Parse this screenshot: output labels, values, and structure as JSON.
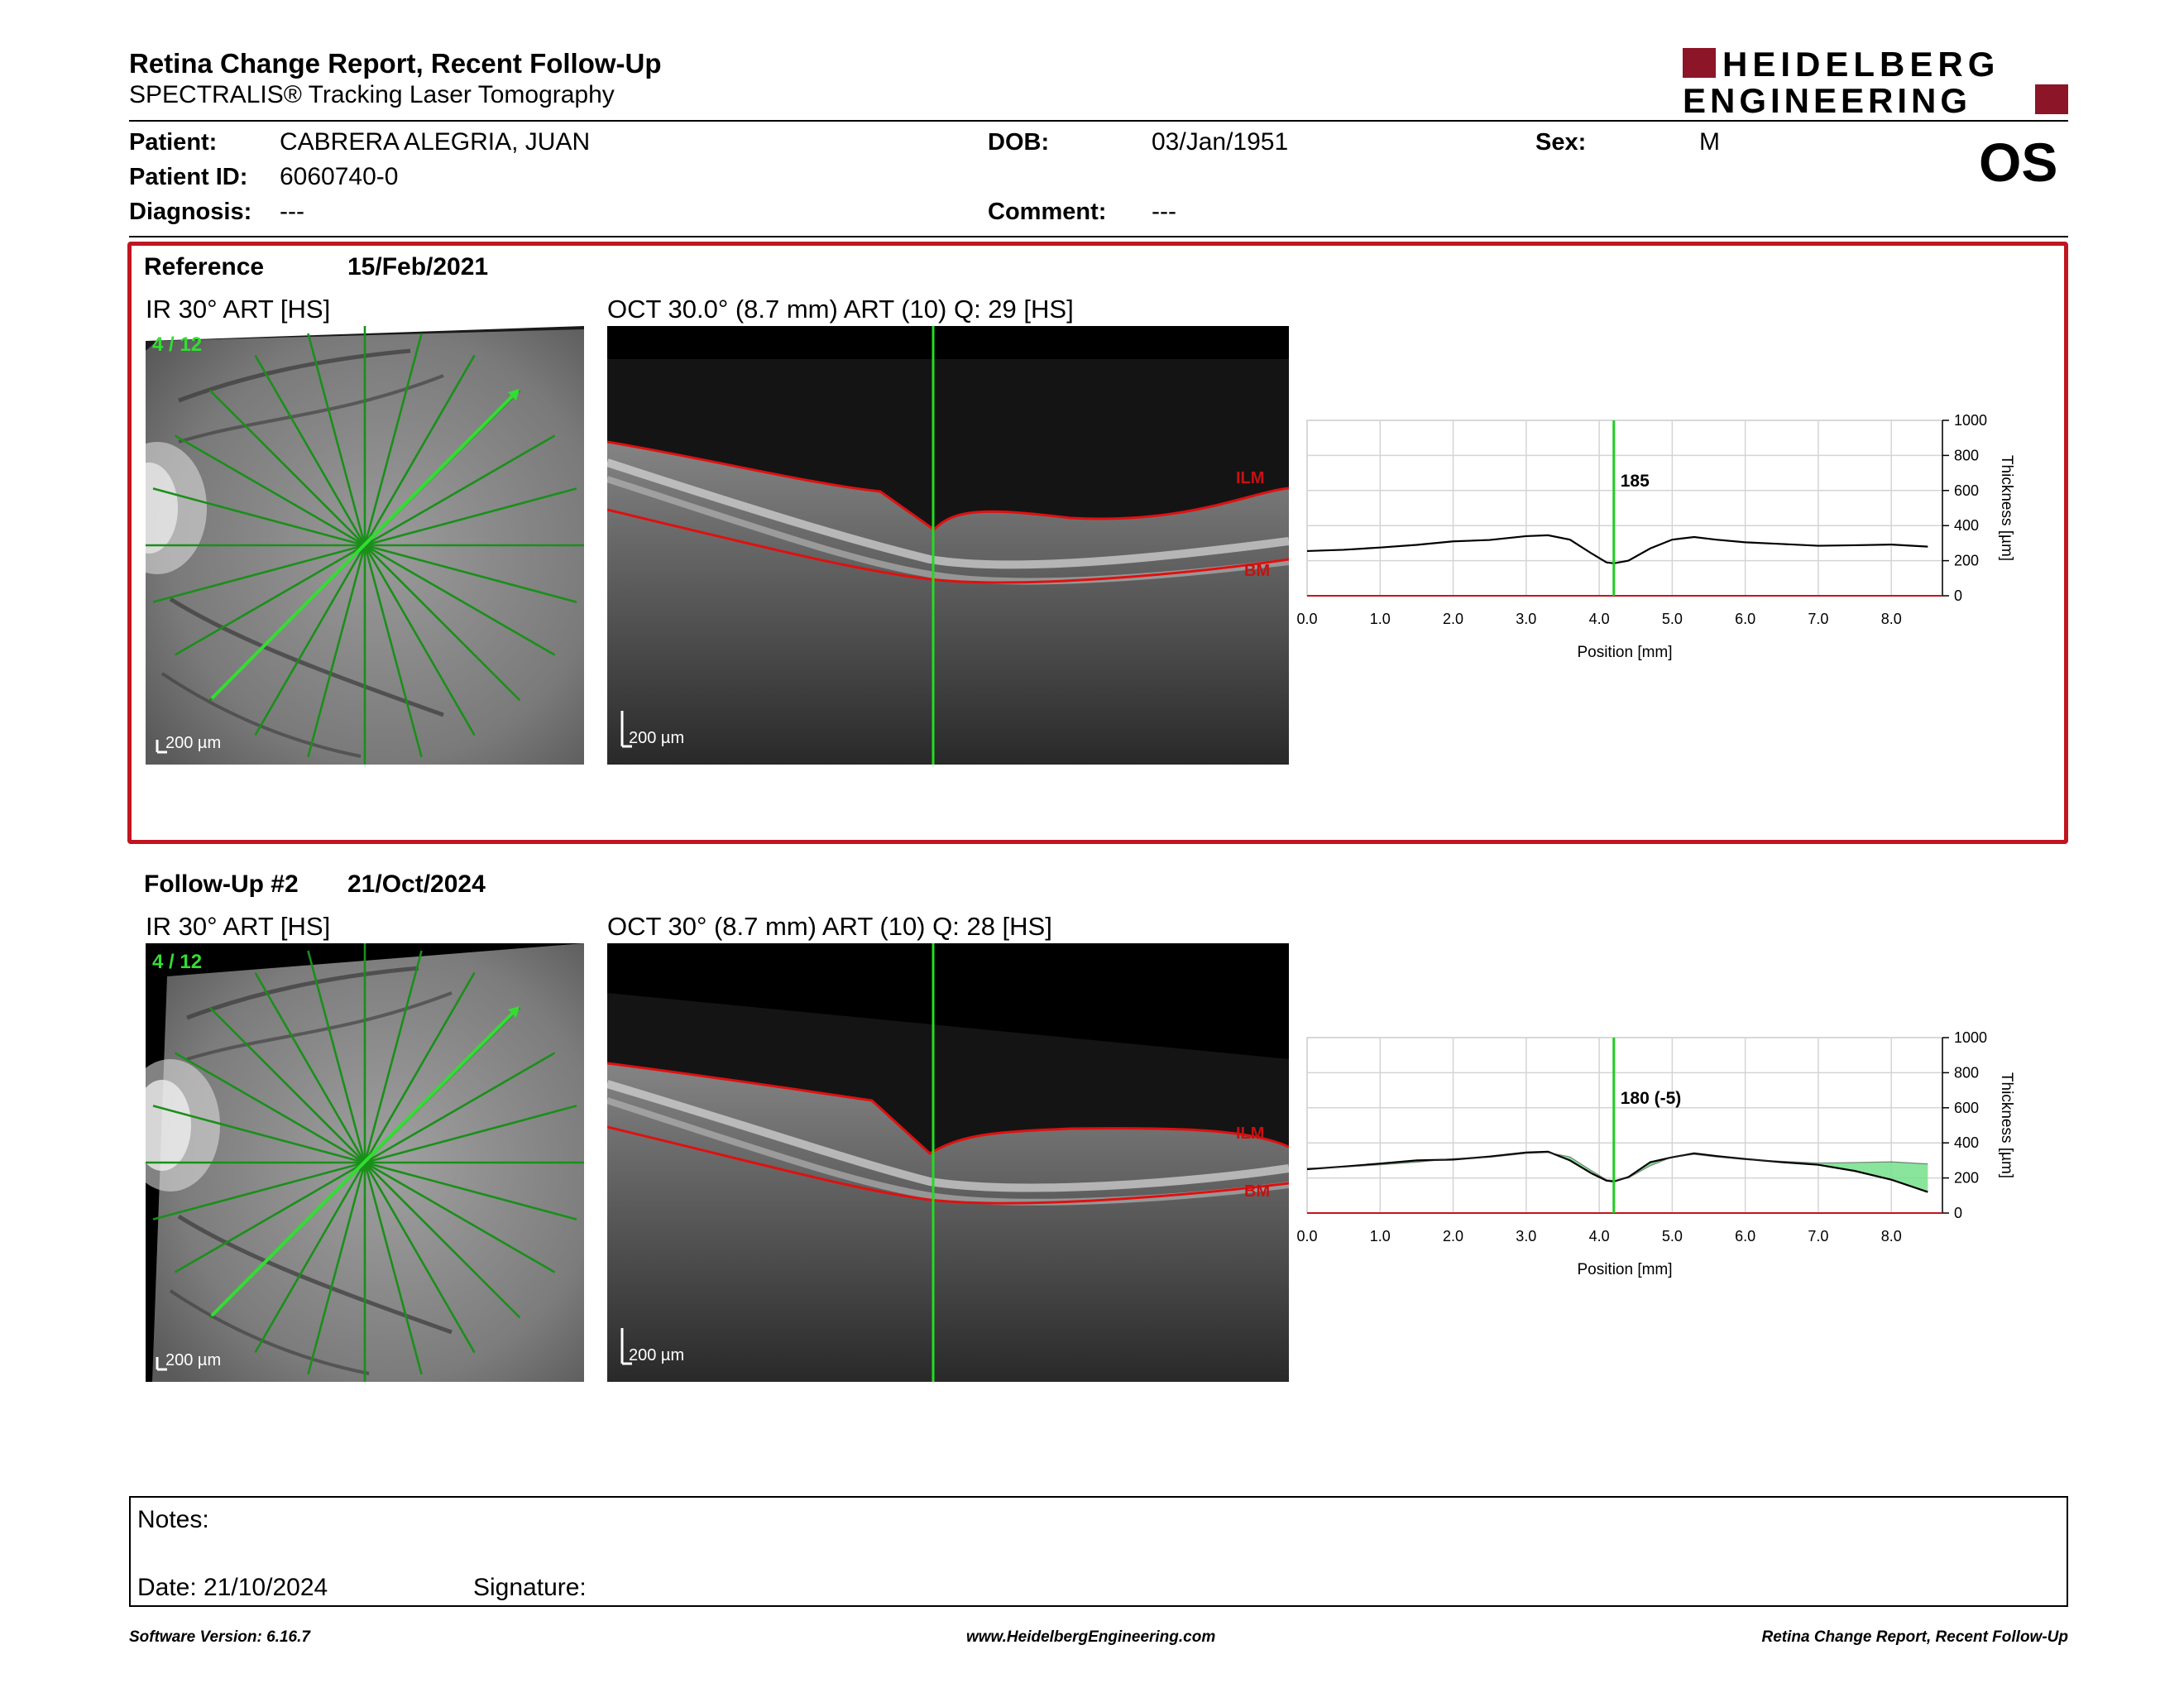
{
  "header": {
    "title": "Retina Change Report, Recent Follow-Up",
    "subtitle": "SPECTRALIS® Tracking Laser Tomography",
    "logo_line1": "HEIDELBERG",
    "logo_line2": "ENGINEERING",
    "brand_color": "#8c1528"
  },
  "patient": {
    "name_label": "Patient:",
    "name": "CABRERA ALEGRIA, JUAN",
    "id_label": "Patient ID:",
    "id": "6060740-0",
    "diagnosis_label": "Diagnosis:",
    "diagnosis": "---",
    "dob_label": "DOB:",
    "dob": "03/Jan/1951",
    "comment_label": "Comment:",
    "comment": "---",
    "sex_label": "Sex:",
    "sex": "M",
    "eye": "OS"
  },
  "reference": {
    "label": "Reference",
    "date": "15/Feb/2021",
    "ir_title": "IR 30° ART [HS]",
    "ir_counter": "4 / 12",
    "oct_title": "OCT 30.0° (8.7 mm) ART (10) Q: 29 [HS]",
    "scale_bar": "200 µm",
    "ilm_label": "ILM",
    "bm_label": "BM",
    "border_color": "#c0161f"
  },
  "followup": {
    "label": "Follow-Up #2",
    "date": "21/Oct/2024",
    "ir_title": "IR 30° ART [HS]",
    "ir_counter": "4 / 12",
    "oct_title": "OCT 30° (8.7 mm) ART (10) Q: 28 [HS]",
    "scale_bar": "200 µm",
    "ilm_label": "ILM",
    "bm_label": "BM"
  },
  "chart_data": [
    {
      "type": "line",
      "xlabel": "Position [mm]",
      "ylabel": "Thickness [µm]",
      "xlim": [
        0,
        8.7
      ],
      "ylim": [
        0,
        1000
      ],
      "x_ticks": [
        "0.0",
        "1.0",
        "2.0",
        "3.0",
        "4.0",
        "5.0",
        "6.0",
        "7.0",
        "8.0"
      ],
      "y_ticks": [
        "0",
        "200",
        "400",
        "600",
        "800",
        "1000"
      ],
      "cursor_x": 4.2,
      "cursor_label": "185",
      "grid": true,
      "series": [
        {
          "x": [
            0,
            0.5,
            1.0,
            1.5,
            2.0,
            2.5,
            3.0,
            3.3,
            3.6,
            3.9,
            4.1,
            4.2,
            4.4,
            4.7,
            5.0,
            5.3,
            5.6,
            6.0,
            6.5,
            7.0,
            7.5,
            8.0,
            8.5
          ],
          "values": [
            255,
            262,
            275,
            290,
            310,
            318,
            340,
            345,
            320,
            240,
            190,
            185,
            200,
            270,
            320,
            335,
            320,
            305,
            295,
            285,
            288,
            292,
            280
          ]
        }
      ]
    },
    {
      "type": "line",
      "xlabel": "Position [mm]",
      "ylabel": "Thickness [µm]",
      "xlim": [
        0,
        8.7
      ],
      "ylim": [
        0,
        1000
      ],
      "x_ticks": [
        "0.0",
        "1.0",
        "2.0",
        "3.0",
        "4.0",
        "5.0",
        "6.0",
        "7.0",
        "8.0"
      ],
      "y_ticks": [
        "0",
        "200",
        "400",
        "600",
        "800",
        "1000"
      ],
      "cursor_x": 4.2,
      "cursor_label": "180 (-5)",
      "grid": true,
      "series": [
        {
          "x": [
            0,
            0.5,
            1.0,
            1.5,
            2.0,
            2.5,
            3.0,
            3.3,
            3.6,
            3.9,
            4.1,
            4.2,
            4.4,
            4.7,
            5.0,
            5.3,
            5.6,
            6.0,
            6.5,
            7.0,
            7.5,
            8.0,
            8.5
          ],
          "values": [
            255,
            262,
            275,
            290,
            310,
            318,
            340,
            345,
            320,
            240,
            190,
            185,
            200,
            270,
            320,
            335,
            320,
            305,
            295,
            285,
            288,
            292,
            280
          ]
        },
        {
          "x": [
            0,
            0.5,
            1.0,
            1.5,
            2.0,
            2.5,
            3.0,
            3.3,
            3.6,
            3.9,
            4.1,
            4.2,
            4.4,
            4.7,
            5.0,
            5.3,
            5.6,
            6.0,
            6.5,
            7.0,
            7.5,
            8.0,
            8.5
          ],
          "values": [
            250,
            265,
            282,
            300,
            305,
            322,
            345,
            350,
            300,
            225,
            185,
            180,
            205,
            290,
            318,
            340,
            325,
            308,
            290,
            275,
            240,
            190,
            120
          ]
        }
      ]
    }
  ],
  "notes": {
    "label": "Notes:",
    "date_label": "Date: 21/10/2024",
    "signature_label": "Signature:"
  },
  "footer": {
    "software": "Software Version: 6.16.7",
    "website": "www.HeidelbergEngineering.com",
    "report_name": "Retina Change Report, Recent Follow-Up"
  }
}
